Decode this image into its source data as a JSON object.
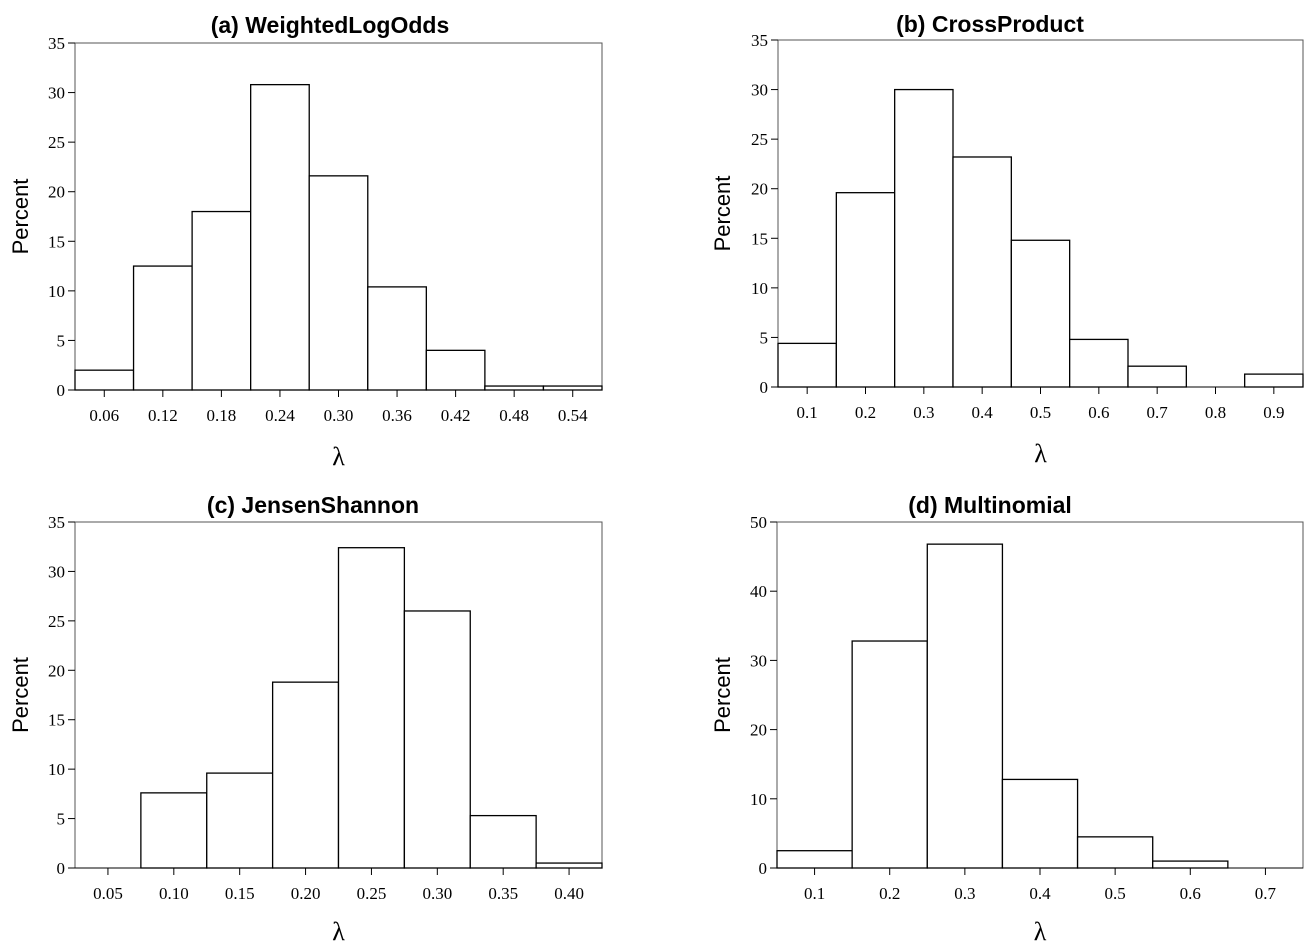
{
  "chart_data": [
    {
      "type": "bar",
      "title": "(a) WeightedLogOdds",
      "xlabel": "λ",
      "ylabel": "Percent",
      "ylim": [
        0,
        35
      ],
      "yticks": [
        "0",
        "5",
        "10",
        "15",
        "20",
        "25",
        "30",
        "35"
      ],
      "categories": [
        "0.06",
        "0.12",
        "0.18",
        "0.24",
        "0.30",
        "0.36",
        "0.42",
        "0.48",
        "0.54"
      ],
      "values": [
        2.0,
        12.5,
        18.0,
        30.8,
        21.6,
        10.4,
        4.0,
        0.4,
        0.4
      ]
    },
    {
      "type": "bar",
      "title": "(b) CrossProduct",
      "xlabel": "λ",
      "ylabel": "Percent",
      "ylim": [
        0,
        35
      ],
      "yticks": [
        "0",
        "5",
        "10",
        "15",
        "20",
        "25",
        "30",
        "35"
      ],
      "categories": [
        "0.1",
        "0.2",
        "0.3",
        "0.4",
        "0.5",
        "0.6",
        "0.7",
        "0.8",
        "0.9"
      ],
      "values": [
        4.4,
        19.6,
        30.0,
        23.2,
        14.8,
        4.8,
        2.1,
        0.0,
        1.3
      ]
    },
    {
      "type": "bar",
      "title": "(c) JensenShannon",
      "xlabel": "λ",
      "ylabel": "Percent",
      "ylim": [
        0,
        35
      ],
      "yticks": [
        "0",
        "5",
        "10",
        "15",
        "20",
        "25",
        "30",
        "35"
      ],
      "categories": [
        "0.05",
        "0.10",
        "0.15",
        "0.20",
        "0.25",
        "0.30",
        "0.35",
        "0.40"
      ],
      "values": [
        0.0,
        7.6,
        9.6,
        18.8,
        32.4,
        26.0,
        5.3,
        0.5
      ]
    },
    {
      "type": "bar",
      "title": "(d) Multinomial",
      "xlabel": "λ",
      "ylabel": "Percent",
      "ylim": [
        0,
        50
      ],
      "yticks": [
        "0",
        "10",
        "20",
        "30",
        "40",
        "50"
      ],
      "categories": [
        "0.1",
        "0.2",
        "0.3",
        "0.4",
        "0.5",
        "0.6",
        "0.7"
      ],
      "values": [
        2.5,
        32.8,
        46.8,
        12.8,
        4.5,
        1.0,
        0.0
      ]
    }
  ]
}
